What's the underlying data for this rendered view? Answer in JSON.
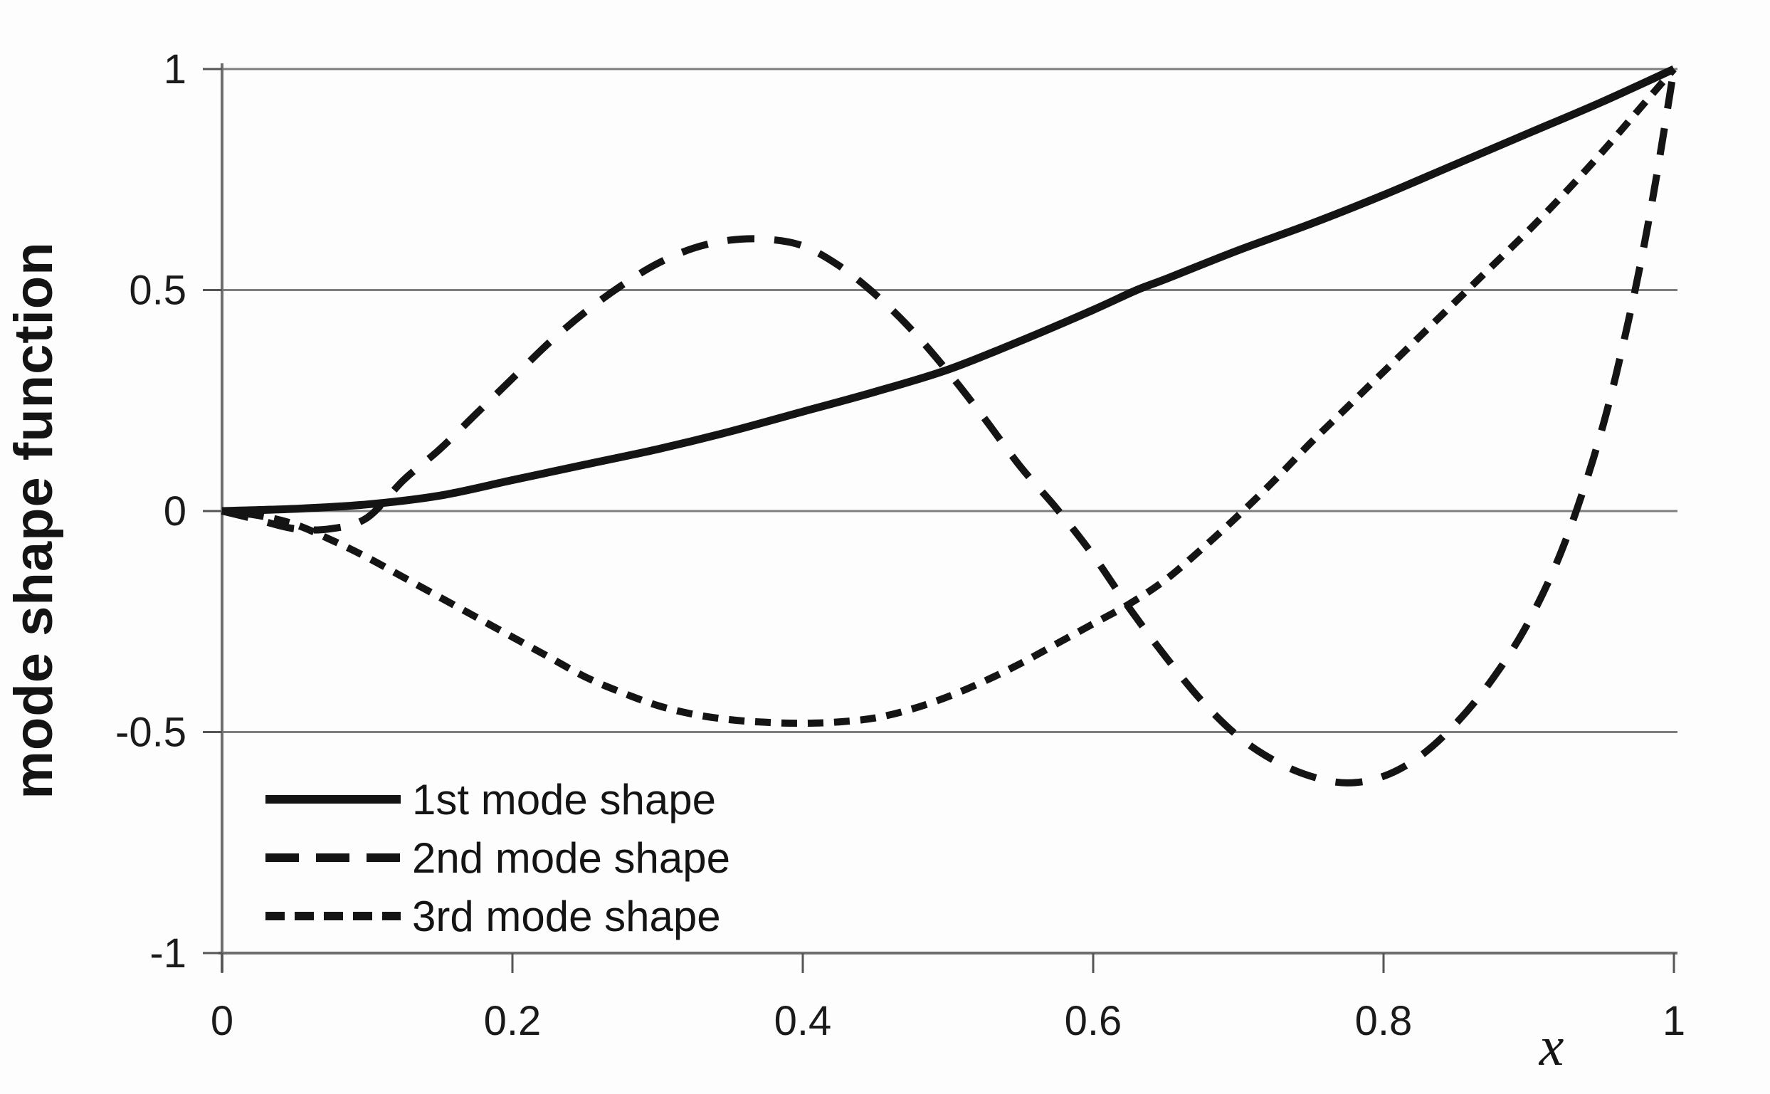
{
  "figure": {
    "background": "#fdfdfd",
    "ink_color": "#141414",
    "grid_color": "#7e7e7e",
    "axis_color": "#6e6e6e"
  },
  "chart_data": {
    "type": "line",
    "title": "",
    "xlabel": "x",
    "ylabel": "mode shape function",
    "xlim": [
      0,
      1
    ],
    "ylim": [
      -1,
      1
    ],
    "grid": "horizontal",
    "legend_position": "inside-bottom-left",
    "x_ticks": [
      {
        "value": 0,
        "label": "0"
      },
      {
        "value": 0.2,
        "label": "0.2"
      },
      {
        "value": 0.4,
        "label": "0.4"
      },
      {
        "value": 0.6,
        "label": "0.6"
      },
      {
        "value": 0.8,
        "label": "0.8"
      },
      {
        "value": 1,
        "label": "1"
      }
    ],
    "y_ticks": [
      {
        "value": 1,
        "label": "1"
      },
      {
        "value": 0.5,
        "label": "0.5"
      },
      {
        "value": 0,
        "label": "0"
      },
      {
        "value": -0.5,
        "label": "-0.5"
      },
      {
        "value": -1,
        "label": "-1"
      }
    ],
    "series": [
      {
        "name": "1st mode shape",
        "line_style": "solid",
        "points": [
          [
            0,
            0
          ],
          [
            0.05,
            0.005
          ],
          [
            0.1,
            0.015
          ],
          [
            0.15,
            0.035
          ],
          [
            0.2,
            0.07
          ],
          [
            0.25,
            0.105
          ],
          [
            0.3,
            0.14
          ],
          [
            0.35,
            0.18
          ],
          [
            0.4,
            0.225
          ],
          [
            0.45,
            0.27
          ],
          [
            0.5,
            0.32
          ],
          [
            0.55,
            0.385
          ],
          [
            0.6,
            0.455
          ],
          [
            0.63,
            0.5
          ],
          [
            0.65,
            0.525
          ],
          [
            0.7,
            0.59
          ],
          [
            0.75,
            0.65
          ],
          [
            0.8,
            0.715
          ],
          [
            0.85,
            0.785
          ],
          [
            0.9,
            0.855
          ],
          [
            0.95,
            0.925
          ],
          [
            1,
            1
          ]
        ]
      },
      {
        "name": "2nd mode shape",
        "line_style": "long-dash",
        "points": [
          [
            0,
            0
          ],
          [
            0.025,
            -0.02
          ],
          [
            0.05,
            -0.04
          ],
          [
            0.075,
            -0.04
          ],
          [
            0.1,
            -0.015
          ],
          [
            0.125,
            0.07
          ],
          [
            0.15,
            0.14
          ],
          [
            0.175,
            0.22
          ],
          [
            0.2,
            0.3
          ],
          [
            0.225,
            0.38
          ],
          [
            0.25,
            0.45
          ],
          [
            0.275,
            0.51
          ],
          [
            0.3,
            0.56
          ],
          [
            0.325,
            0.595
          ],
          [
            0.35,
            0.613
          ],
          [
            0.375,
            0.615
          ],
          [
            0.4,
            0.6
          ],
          [
            0.425,
            0.555
          ],
          [
            0.45,
            0.49
          ],
          [
            0.475,
            0.41
          ],
          [
            0.5,
            0.315
          ],
          [
            0.525,
            0.21
          ],
          [
            0.55,
            0.1
          ],
          [
            0.575,
            0.005
          ],
          [
            0.6,
            -0.1
          ],
          [
            0.625,
            -0.22
          ],
          [
            0.65,
            -0.33
          ],
          [
            0.675,
            -0.43
          ],
          [
            0.7,
            -0.51
          ],
          [
            0.725,
            -0.565
          ],
          [
            0.75,
            -0.6
          ],
          [
            0.775,
            -0.615
          ],
          [
            0.8,
            -0.6
          ],
          [
            0.825,
            -0.555
          ],
          [
            0.85,
            -0.48
          ],
          [
            0.875,
            -0.38
          ],
          [
            0.9,
            -0.25
          ],
          [
            0.925,
            -0.07
          ],
          [
            0.95,
            0.18
          ],
          [
            0.97,
            0.45
          ],
          [
            0.985,
            0.7
          ],
          [
            1,
            1
          ]
        ]
      },
      {
        "name": "3rd mode shape",
        "line_style": "short-dash",
        "points": [
          [
            0,
            0
          ],
          [
            0.025,
            -0.01
          ],
          [
            0.05,
            -0.03
          ],
          [
            0.075,
            -0.065
          ],
          [
            0.1,
            -0.105
          ],
          [
            0.125,
            -0.15
          ],
          [
            0.15,
            -0.195
          ],
          [
            0.175,
            -0.24
          ],
          [
            0.2,
            -0.285
          ],
          [
            0.225,
            -0.33
          ],
          [
            0.25,
            -0.375
          ],
          [
            0.275,
            -0.41
          ],
          [
            0.3,
            -0.44
          ],
          [
            0.325,
            -0.46
          ],
          [
            0.35,
            -0.472
          ],
          [
            0.375,
            -0.478
          ],
          [
            0.4,
            -0.48
          ],
          [
            0.425,
            -0.477
          ],
          [
            0.45,
            -0.468
          ],
          [
            0.475,
            -0.448
          ],
          [
            0.5,
            -0.42
          ],
          [
            0.525,
            -0.385
          ],
          [
            0.55,
            -0.345
          ],
          [
            0.575,
            -0.3
          ],
          [
            0.6,
            -0.255
          ],
          [
            0.625,
            -0.21
          ],
          [
            0.65,
            -0.155
          ],
          [
            0.675,
            -0.085
          ],
          [
            0.7,
            -0.01
          ],
          [
            0.725,
            0.07
          ],
          [
            0.75,
            0.155
          ],
          [
            0.775,
            0.235
          ],
          [
            0.8,
            0.315
          ],
          [
            0.825,
            0.395
          ],
          [
            0.85,
            0.475
          ],
          [
            0.875,
            0.555
          ],
          [
            0.9,
            0.635
          ],
          [
            0.925,
            0.72
          ],
          [
            0.95,
            0.81
          ],
          [
            0.975,
            0.905
          ],
          [
            1,
            1
          ]
        ]
      }
    ]
  }
}
